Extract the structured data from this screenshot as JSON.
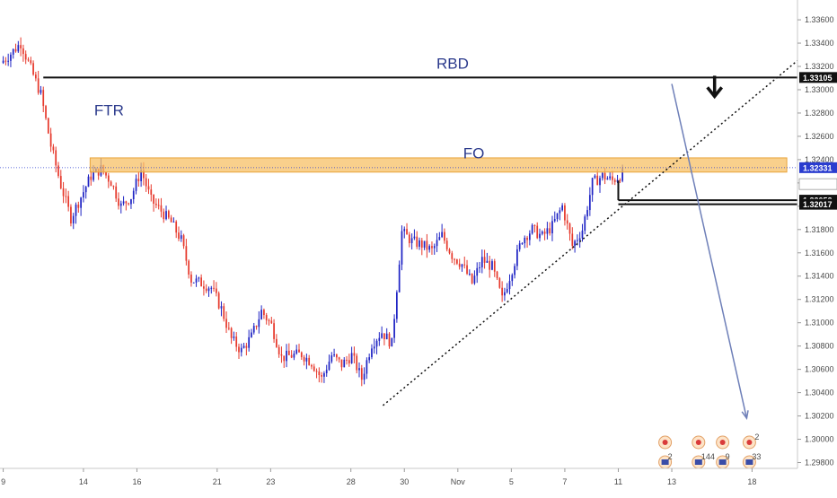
{
  "chart_data": {
    "type": "candlestick",
    "title": "",
    "y_axis": {
      "side": "right",
      "ylim": [
        1.2975,
        1.3377
      ],
      "ticks": [
        "1.33600",
        "1.33400",
        "1.33200",
        "1.33000",
        "1.32800",
        "1.32600",
        "1.32400",
        "1.32200",
        "1.32000",
        "1.31800",
        "1.31600",
        "1.31400",
        "1.31200",
        "1.31000",
        "1.30800",
        "1.30600",
        "1.30400",
        "1.30200",
        "1.30000",
        "1.29800"
      ]
    },
    "x_axis": {
      "ticks": [
        {
          "label": "9",
          "x": 0
        },
        {
          "label": "14",
          "x": 3
        },
        {
          "label": "16",
          "x": 5
        },
        {
          "label": "21",
          "x": 8
        },
        {
          "label": "23",
          "x": 10
        },
        {
          "label": "28",
          "x": 13
        },
        {
          "label": "30",
          "x": 15
        },
        {
          "label": "Nov",
          "x": 17
        },
        {
          "label": "5",
          "x": 19
        },
        {
          "label": "7",
          "x": 21
        },
        {
          "label": "11",
          "x": 23
        },
        {
          "label": "13",
          "x": 25
        },
        {
          "label": "18",
          "x": 28
        }
      ],
      "xlim": [
        -0.12,
        29.7
      ]
    },
    "closes": [
      1.3323,
      1.3331,
      1.334,
      1.3318,
      1.3296,
      1.3252,
      1.3218,
      1.319,
      1.3208,
      1.3226,
      1.3232,
      1.3221,
      1.32,
      1.3208,
      1.3231,
      1.3205,
      1.3196,
      1.3186,
      1.3171,
      1.3137,
      1.3134,
      1.313,
      1.3112,
      1.3086,
      1.3076,
      1.3088,
      1.311,
      1.3098,
      1.307,
      1.3072,
      1.3073,
      1.3066,
      1.3052,
      1.3072,
      1.3064,
      1.3072,
      1.3052,
      1.3082,
      1.3092,
      1.3082,
      1.3178,
      1.317,
      1.3167,
      1.3162,
      1.3175,
      1.3158,
      1.315,
      1.3134,
      1.3154,
      1.3148,
      1.312,
      1.3146,
      1.3172,
      1.318,
      1.3174,
      1.3183,
      1.32,
      1.3166,
      1.318,
      1.322,
      1.3226,
      1.3222,
      1.3228
    ],
    "candle_x_start": 0,
    "candle_x_step": 0.375,
    "horizontal_lines": [
      {
        "label": "RBD",
        "y": 1.33105
      },
      {
        "label": "",
        "y": 1.32052
      },
      {
        "label": "",
        "y": 1.32017
      }
    ],
    "current_price_line": {
      "y": 1.32331
    },
    "zone": {
      "label": "FO",
      "y_top": 1.32415,
      "y_bottom": 1.32293,
      "x_start": 3.25,
      "x_end": 29.3
    },
    "trendline": {
      "style": "dotted",
      "from": [
        14.2,
        1.3029
      ],
      "to": [
        29.7,
        1.3325
      ]
    },
    "projection_arrow": {
      "from": [
        25.0,
        1.3305
      ],
      "to": [
        27.8,
        1.3018
      ]
    },
    "annotations": [
      {
        "label": "FTR",
        "x": 3.4,
        "y": 1.3278
      },
      {
        "label": "RBD",
        "x": 16.2,
        "y": 1.3318
      },
      {
        "label": "FO",
        "x": 17.2,
        "y": 1.3241
      }
    ],
    "down_arrow": {
      "x": 26.6,
      "y": 1.3312
    },
    "price_labels": [
      "1.33105",
      "1.32331",
      "38:21",
      "1.32052",
      "1.32017"
    ],
    "legend": "none",
    "grid": false,
    "event_icons": [
      {
        "x": 24.75,
        "count_cad": "",
        "count_usd": "2"
      },
      {
        "x": 26.0,
        "count_cad": "",
        "count_usd": "144"
      },
      {
        "x": 26.9,
        "count_cad": "",
        "count_usd": "9"
      },
      {
        "x": 27.9,
        "count_cad": "2",
        "count_usd": "33"
      }
    ],
    "colors": {
      "up": "#1f24c4",
      "down": "#e6392c",
      "zone": "#f7c066",
      "lines": "#111111",
      "trendline": "#111111",
      "arrow": "#6e7fb8",
      "current": "#2a3ccf",
      "axis_text": "#4a4a4a"
    }
  }
}
